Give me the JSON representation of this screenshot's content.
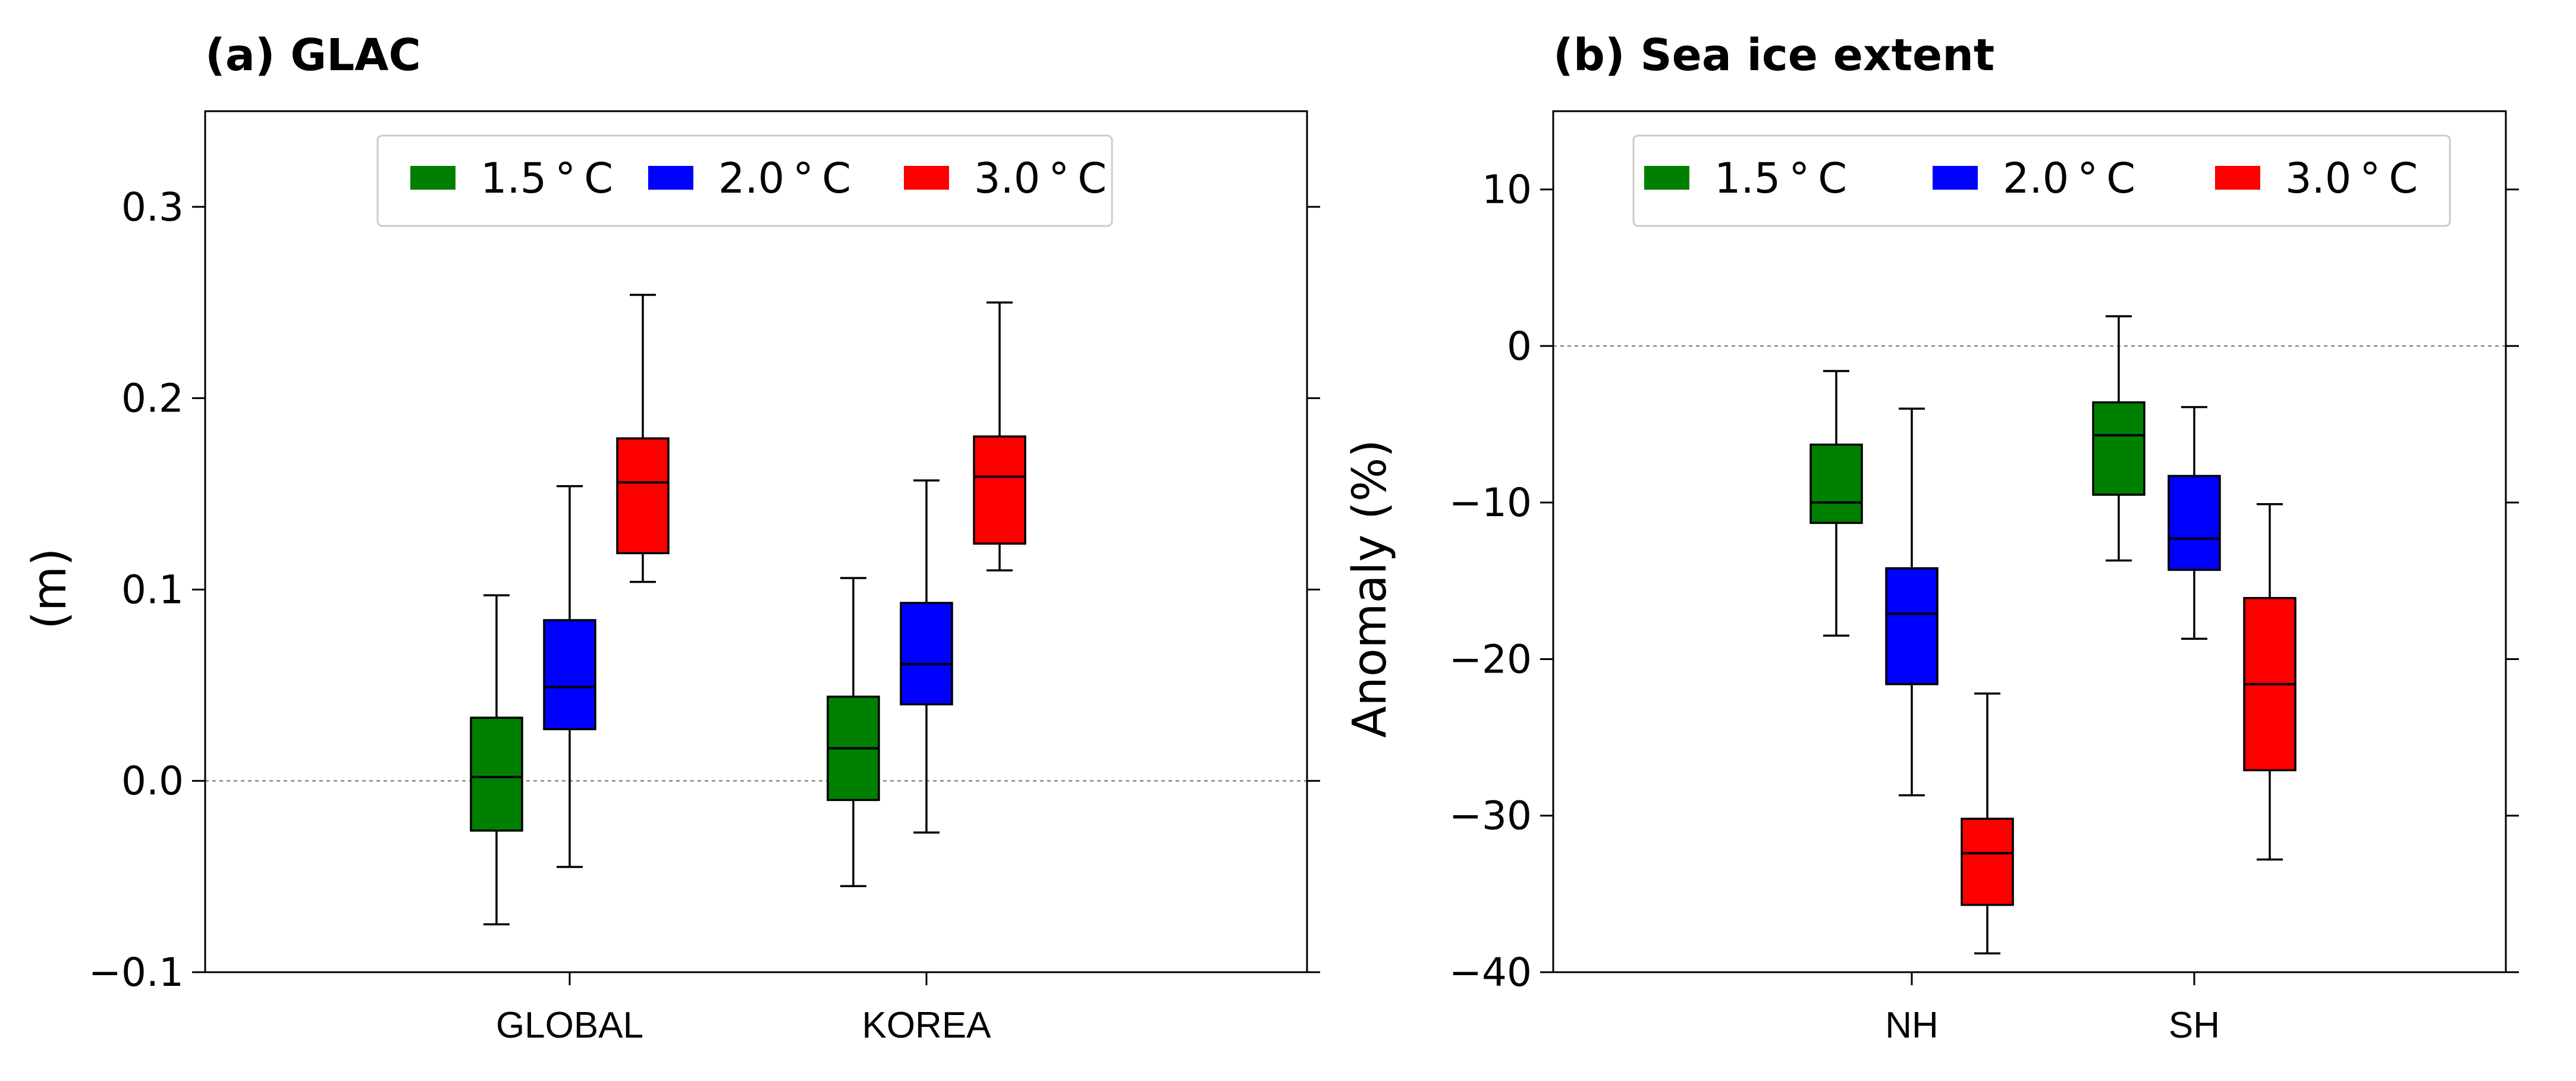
{
  "chart_data": [
    {
      "type": "boxplot",
      "title": "(a) GLAC",
      "xlabel": "",
      "ylabel": "(m)",
      "ylim": [
        -0.1,
        0.35
      ],
      "yticks": [
        -0.1,
        0.0,
        0.1,
        0.2,
        0.3
      ],
      "ytick_labels": [
        "−0.1",
        "0.0",
        "0.1",
        "0.2",
        "0.3"
      ],
      "reference_line": 0,
      "categories": [
        "GLOBAL",
        "KOREA"
      ],
      "legend": {
        "position": "top-center",
        "entries": [
          "1.5 ° C",
          "2.0 ° C",
          "3.0 ° C"
        ]
      },
      "series": [
        {
          "name": "1.5 °C",
          "color": "#008000",
          "boxes": [
            {
              "whislo": -0.075,
              "q1": -0.026,
              "med": 0.002,
              "q3": 0.033,
              "whishi": 0.097
            },
            {
              "whislo": -0.055,
              "q1": -0.01,
              "med": 0.017,
              "q3": 0.044,
              "whishi": 0.106
            }
          ]
        },
        {
          "name": "2.0 °C",
          "color": "#0000ff",
          "boxes": [
            {
              "whislo": -0.045,
              "q1": 0.027,
              "med": 0.049,
              "q3": 0.084,
              "whishi": 0.154
            },
            {
              "whislo": -0.027,
              "q1": 0.04,
              "med": 0.061,
              "q3": 0.093,
              "whishi": 0.157
            }
          ]
        },
        {
          "name": "3.0 °C",
          "color": "#ff0000",
          "boxes": [
            {
              "whislo": 0.104,
              "q1": 0.119,
              "med": 0.156,
              "q3": 0.179,
              "whishi": 0.254
            },
            {
              "whislo": 0.11,
              "q1": 0.124,
              "med": 0.159,
              "q3": 0.18,
              "whishi": 0.25
            }
          ]
        }
      ]
    },
    {
      "type": "boxplot",
      "title": "(b) Sea ice extent",
      "xlabel": "",
      "ylabel": "Anomaly (%)",
      "ylim": [
        -40,
        15
      ],
      "yticks": [
        -40,
        -30,
        -20,
        -10,
        0,
        10
      ],
      "ytick_labels": [
        "−40",
        "−30",
        "−20",
        "−10",
        "0",
        "10"
      ],
      "reference_line": 0,
      "categories": [
        "NH",
        "SH"
      ],
      "legend": {
        "position": "top-center",
        "entries": [
          "1.5 ° C",
          "2.0 ° C",
          "3.0 ° C"
        ]
      },
      "series": [
        {
          "name": "1.5 °C",
          "color": "#008000",
          "boxes": [
            {
              "whislo": -18.5,
              "q1": -11.3,
              "med": -10.0,
              "q3": -6.3,
              "whishi": -1.6
            },
            {
              "whislo": -13.7,
              "q1": -9.5,
              "med": -5.7,
              "q3": -3.6,
              "whishi": 1.9
            }
          ]
        },
        {
          "name": "2.0 °C",
          "color": "#0000ff",
          "boxes": [
            {
              "whislo": -28.7,
              "q1": -21.6,
              "med": -17.1,
              "q3": -14.2,
              "whishi": -4.0
            },
            {
              "whislo": -18.7,
              "q1": -14.3,
              "med": -12.3,
              "q3": -8.3,
              "whishi": -3.9
            }
          ]
        },
        {
          "name": "3.0 °C",
          "color": "#ff0000",
          "boxes": [
            {
              "whislo": -38.8,
              "q1": -35.7,
              "med": -32.4,
              "q3": -30.2,
              "whishi": -22.2
            },
            {
              "whislo": -32.8,
              "q1": -27.1,
              "med": -21.6,
              "q3": -16.1,
              "whishi": -10.1
            }
          ]
        }
      ]
    }
  ]
}
